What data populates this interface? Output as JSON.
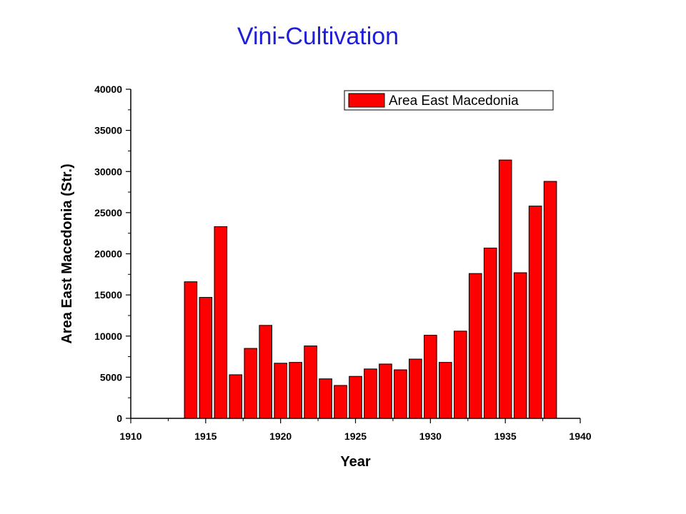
{
  "page": {
    "title": "Vini-Cultivation"
  },
  "chart_data": {
    "type": "bar",
    "title": "Vini-Cultivation",
    "xlabel": "Year",
    "ylabel": "Area East Macedonia (Str.)",
    "xlim": [
      1910,
      1940
    ],
    "ylim": [
      0,
      40000
    ],
    "xticks": [
      1910,
      1915,
      1920,
      1925,
      1930,
      1935,
      1940
    ],
    "yticks": [
      0,
      5000,
      10000,
      15000,
      20000,
      25000,
      30000,
      35000,
      40000
    ],
    "legend": {
      "position": "top-right",
      "entries": [
        "Area East Macedonia"
      ]
    },
    "bar_color": "#ff0000",
    "grid": false,
    "series": [
      {
        "name": "Area East Macedonia",
        "x": [
          1914,
          1915,
          1916,
          1917,
          1918,
          1919,
          1920,
          1921,
          1922,
          1923,
          1924,
          1925,
          1926,
          1927,
          1928,
          1929,
          1930,
          1931,
          1932,
          1933,
          1934,
          1935,
          1936,
          1937,
          1938
        ],
        "values": [
          16600,
          14700,
          23300,
          5300,
          8500,
          11300,
          6700,
          6800,
          8800,
          4800,
          4000,
          5100,
          6000,
          6600,
          5900,
          7200,
          10100,
          6800,
          10600,
          17600,
          20700,
          31400,
          17700,
          25800,
          28800
        ]
      }
    ]
  }
}
